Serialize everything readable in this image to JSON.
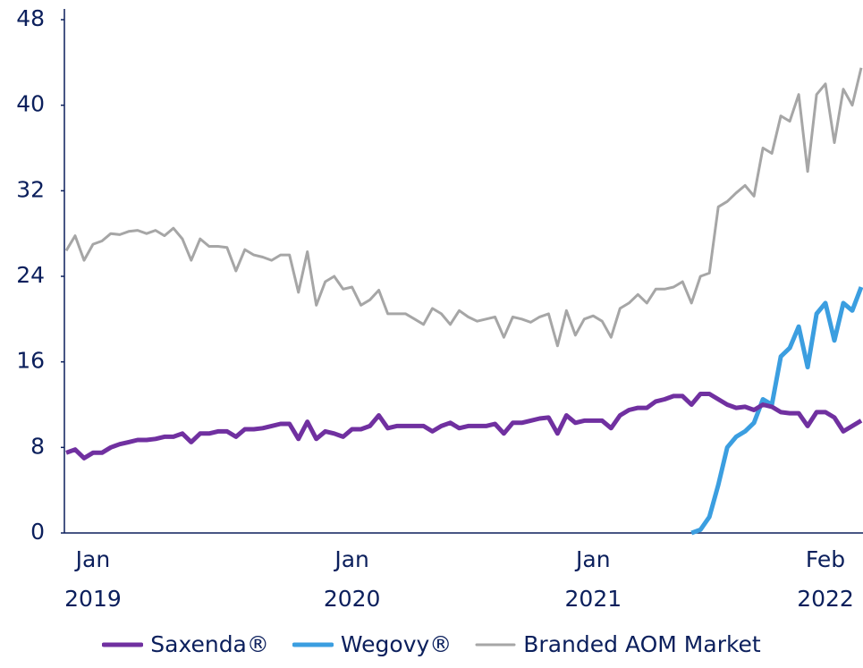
{
  "chart_data": {
    "type": "line",
    "categories": [
      null,
      null,
      null,
      "Jan 2019",
      null,
      null,
      null,
      null,
      null,
      null,
      null,
      null,
      null,
      null,
      null,
      null,
      null,
      null,
      null,
      null,
      null,
      null,
      null,
      null,
      null,
      null,
      null,
      null,
      null,
      null,
      null,
      null,
      "Jan 2020",
      null,
      null,
      null,
      null,
      null,
      null,
      null,
      null,
      null,
      null,
      null,
      null,
      null,
      null,
      null,
      null,
      null,
      null,
      null,
      null,
      null,
      null,
      null,
      null,
      null,
      null,
      "Jan 2021",
      null,
      null,
      null,
      null,
      null,
      null,
      null,
      null,
      null,
      null,
      null,
      null,
      null,
      null,
      null,
      null,
      null,
      null,
      null,
      null,
      null,
      null,
      null,
      null,
      null,
      "Feb 2022",
      null,
      null,
      null,
      null
    ],
    "series": [
      {
        "name": "Saxenda®",
        "color": "#7030a0",
        "width": 5,
        "values": [
          7.5,
          7.8,
          7.0,
          7.5,
          7.5,
          8.0,
          8.3,
          8.5,
          8.7,
          8.7,
          8.8,
          9.0,
          9.0,
          9.3,
          8.5,
          9.3,
          9.3,
          9.5,
          9.5,
          9.0,
          9.7,
          9.7,
          9.8,
          10.0,
          10.2,
          10.2,
          8.8,
          10.4,
          8.8,
          9.5,
          9.3,
          9.0,
          9.7,
          9.7,
          10.0,
          11.0,
          9.8,
          10.0,
          10.0,
          10.0,
          10.0,
          9.5,
          10.0,
          10.3,
          9.8,
          10.0,
          10.0,
          10.0,
          10.2,
          9.3,
          10.3,
          10.3,
          10.5,
          10.7,
          10.8,
          9.3,
          11.0,
          10.3,
          10.5,
          10.5,
          10.5,
          9.8,
          11.0,
          11.5,
          11.7,
          11.7,
          12.3,
          12.5,
          12.8,
          12.8,
          12.0,
          13.0,
          13.0,
          12.5,
          12.0,
          11.7,
          11.8,
          11.5,
          12.0,
          11.8,
          11.3,
          11.2,
          11.2,
          10.0,
          11.3,
          11.3,
          10.8,
          9.5,
          10.0,
          10.5
        ]
      },
      {
        "name": "Wegovy®",
        "color": "#3b9ee0",
        "width": 5,
        "values": [
          null,
          null,
          null,
          null,
          null,
          null,
          null,
          null,
          null,
          null,
          null,
          null,
          null,
          null,
          null,
          null,
          null,
          null,
          null,
          null,
          null,
          null,
          null,
          null,
          null,
          null,
          null,
          null,
          null,
          null,
          null,
          null,
          null,
          null,
          null,
          null,
          null,
          null,
          null,
          null,
          null,
          null,
          null,
          null,
          null,
          null,
          null,
          null,
          null,
          null,
          null,
          null,
          null,
          null,
          null,
          null,
          null,
          null,
          null,
          null,
          null,
          null,
          null,
          null,
          null,
          null,
          null,
          null,
          null,
          null,
          0,
          0.3,
          1.5,
          4.5,
          8.0,
          9.0,
          9.5,
          10.3,
          12.5,
          12.0,
          16.5,
          17.3,
          19.3,
          15.5,
          20.5,
          21.5,
          18.0,
          21.5,
          20.8,
          23.0
        ]
      },
      {
        "name": "Branded AOM Market",
        "color": "#a6a6a6",
        "width": 3,
        "values": [
          26.4,
          27.8,
          25.5,
          27.0,
          27.3,
          28.0,
          27.9,
          28.2,
          28.3,
          28.0,
          28.3,
          27.8,
          28.5,
          27.5,
          25.5,
          27.5,
          26.8,
          26.8,
          26.7,
          24.5,
          26.5,
          26.0,
          25.8,
          25.5,
          26.0,
          26.0,
          22.5,
          26.3,
          21.3,
          23.5,
          24.0,
          22.8,
          23.0,
          21.3,
          21.8,
          22.7,
          20.5,
          20.5,
          20.5,
          20.0,
          19.5,
          21.0,
          20.5,
          19.5,
          20.8,
          20.2,
          19.8,
          20.0,
          20.2,
          18.3,
          20.2,
          20.0,
          19.7,
          20.2,
          20.5,
          17.5,
          20.8,
          18.5,
          20.0,
          20.3,
          19.8,
          18.3,
          21.0,
          21.5,
          22.3,
          21.5,
          22.8,
          22.8,
          23.0,
          23.5,
          21.5,
          24.0,
          24.3,
          30.5,
          31.0,
          31.8,
          32.5,
          31.5,
          36.0,
          35.5,
          39.0,
          38.5,
          41.0,
          33.8,
          41.0,
          42.0,
          36.5,
          41.5,
          40.0,
          43.5
        ]
      }
    ],
    "ylim": [
      0,
      48
    ],
    "yticks": [
      0,
      8,
      16,
      24,
      32,
      40,
      48
    ],
    "axis_color": "#0b1f5c"
  }
}
